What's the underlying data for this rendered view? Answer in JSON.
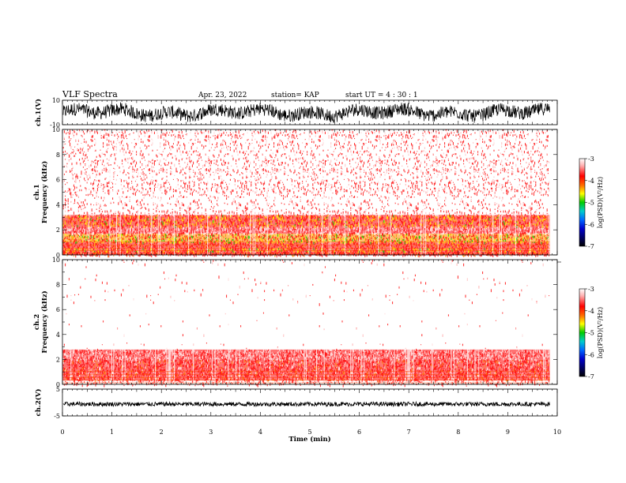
{
  "header": {
    "title": "VLF Spectra",
    "date": "Apr. 23, 2022",
    "station": "station= KAP",
    "start": "start  UT  =   4 : 30 : 1"
  },
  "colors": {
    "waveform": "#000000",
    "colorbar": [
      "#ffffff",
      "#ff0000",
      "#ff8800",
      "#ffff00",
      "#00cc00",
      "#00aaff",
      "#0000ff",
      "#000000"
    ]
  },
  "chart_data": [
    {
      "type": "line",
      "panel": "ch1-waveform",
      "ylabel": "ch.1(V)",
      "ylim": [
        -10,
        10
      ],
      "ytick_labels": [
        "10",
        "-10"
      ],
      "xlim": [
        0,
        10
      ],
      "description_values": {
        "approx_amplitude_range": [
          -8,
          8
        ]
      }
    },
    {
      "type": "heatmap",
      "panel": "ch1-spectrogram",
      "ylabel": "ch.1\nFrequency (kHz)",
      "ylabel_line1": "ch.1",
      "ylabel_line2": "Frequency (kHz)",
      "ylim": [
        0,
        10
      ],
      "ytick_labels": [
        "0",
        "2",
        "4",
        "6",
        "8",
        "10"
      ],
      "xlim": [
        0,
        10
      ],
      "data_end_min": 9.85,
      "bands": [
        {
          "f_low": 0.0,
          "f_high": 0.3,
          "level": -4.2
        },
        {
          "f_low": 0.3,
          "f_high": 0.6,
          "level": -4.6
        },
        {
          "f_low": 0.6,
          "f_high": 1.0,
          "level": -4.3
        },
        {
          "f_low": 1.0,
          "f_high": 1.7,
          "level": -4.7
        },
        {
          "f_low": 1.7,
          "f_high": 2.3,
          "level": -3.6
        },
        {
          "f_low": 2.3,
          "f_high": 3.2,
          "level": -4.6
        },
        {
          "f_low": 3.2,
          "f_high": 10.0,
          "level": -3.4
        }
      ],
      "colorbar": {
        "label": "log(PSD)(V²/Hz)",
        "ticks": [
          "-3",
          "-4",
          "-5",
          "-6",
          "-7"
        ],
        "range": [
          -7,
          -3
        ]
      }
    },
    {
      "type": "heatmap",
      "panel": "ch2-spectrogram",
      "ylabel": "ch.2\nFrequency (kHz)",
      "ylabel_line1": "ch.2",
      "ylabel_line2": "Frequency (kHz)",
      "ylim": [
        0,
        10
      ],
      "ytick_labels": [
        "0",
        "2",
        "4",
        "6",
        "8",
        "10"
      ],
      "xlim": [
        0,
        10
      ],
      "data_end_min": 9.85,
      "bands": [
        {
          "f_low": 0.0,
          "f_high": 0.3,
          "level": -3.5
        },
        {
          "f_low": 0.3,
          "f_high": 2.0,
          "level": -4.1
        },
        {
          "f_low": 2.0,
          "f_high": 2.8,
          "level": -3.6
        },
        {
          "f_low": 2.8,
          "f_high": 10.0,
          "level": -3.0
        }
      ],
      "colorbar": {
        "label": "log(PSD)(V²/Hz)",
        "ticks": [
          "-3",
          "-4",
          "-5",
          "-6",
          "-7"
        ],
        "range": [
          -7,
          -3
        ]
      }
    },
    {
      "type": "line",
      "panel": "ch2-waveform",
      "ylabel": "ch.2(V)",
      "ylim": [
        -5,
        5
      ],
      "ytick_labels": [
        "5",
        "-5"
      ],
      "xlim": [
        0,
        10
      ],
      "xlabel": "Time (min)",
      "xtick_labels": [
        "0",
        "1",
        "2",
        "3",
        "4",
        "5",
        "6",
        "7",
        "8",
        "9",
        "10"
      ],
      "description_values": {
        "approx_amplitude_range": [
          -1.5,
          0.5
        ]
      }
    }
  ]
}
